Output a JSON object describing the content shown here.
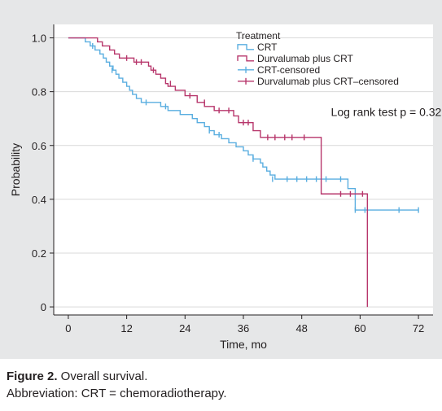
{
  "chart_data": {
    "type": "line",
    "subtype": "kaplan-meier step",
    "title": "",
    "xlabel": "Time, mo",
    "ylabel": "Probability",
    "xlim": [
      -3,
      75
    ],
    "ylim": [
      -0.03,
      1.05
    ],
    "x_ticks": [
      0,
      12,
      24,
      36,
      48,
      60,
      72
    ],
    "y_ticks": [
      0,
      0.2,
      0.4,
      0.6,
      0.8,
      1.0
    ],
    "y_tick_labels": [
      "0",
      "0.2",
      "0.4",
      "0.6",
      "0.8",
      "1.0"
    ],
    "grid": "horizontal",
    "legend": {
      "title": "Treatment",
      "placement": "top-right",
      "entries": [
        "CRT",
        "Durvalumab plus CRT",
        "CRT-censored",
        "Durvalumab plus CRT–censored"
      ]
    },
    "annotations": [
      {
        "text": "Log rank test p = 0.32",
        "x": 54,
        "y": 0.71
      }
    ],
    "series": [
      {
        "name": "CRT",
        "color": "#5aaee0",
        "steps": [
          [
            0,
            1.0
          ],
          [
            3.5,
            0.985
          ],
          [
            4.5,
            0.97
          ],
          [
            5.5,
            0.955
          ],
          [
            6.5,
            0.94
          ],
          [
            7.2,
            0.925
          ],
          [
            7.8,
            0.91
          ],
          [
            8.5,
            0.895
          ],
          [
            9.2,
            0.88
          ],
          [
            9.8,
            0.865
          ],
          [
            10.4,
            0.85
          ],
          [
            11.2,
            0.835
          ],
          [
            12.0,
            0.82
          ],
          [
            12.6,
            0.805
          ],
          [
            13.2,
            0.79
          ],
          [
            14.0,
            0.775
          ],
          [
            15.0,
            0.76
          ],
          [
            19.0,
            0.745
          ],
          [
            20.5,
            0.73
          ],
          [
            23.0,
            0.715
          ],
          [
            25.5,
            0.7
          ],
          [
            26.5,
            0.685
          ],
          [
            28.0,
            0.67
          ],
          [
            29.0,
            0.655
          ],
          [
            30.0,
            0.64
          ],
          [
            31.5,
            0.625
          ],
          [
            33.0,
            0.61
          ],
          [
            34.5,
            0.595
          ],
          [
            36.0,
            0.58
          ],
          [
            37.0,
            0.565
          ],
          [
            38.0,
            0.55
          ],
          [
            39.5,
            0.535
          ],
          [
            40.0,
            0.52
          ],
          [
            40.8,
            0.505
          ],
          [
            41.5,
            0.49
          ],
          [
            42.5,
            0.475
          ],
          [
            57.5,
            0.44
          ],
          [
            59.0,
            0.36
          ]
        ],
        "end_x": 72
      },
      {
        "name": "Durvalumab plus CRT",
        "color": "#b7366b",
        "steps": [
          [
            0,
            1.0
          ],
          [
            6.0,
            0.985
          ],
          [
            7.0,
            0.97
          ],
          [
            8.5,
            0.955
          ],
          [
            9.5,
            0.94
          ],
          [
            10.5,
            0.925
          ],
          [
            13.5,
            0.91
          ],
          [
            16.5,
            0.895
          ],
          [
            17.0,
            0.88
          ],
          [
            18.0,
            0.865
          ],
          [
            19.0,
            0.85
          ],
          [
            20.0,
            0.83
          ],
          [
            20.5,
            0.82
          ],
          [
            22.0,
            0.805
          ],
          [
            24.0,
            0.785
          ],
          [
            26.5,
            0.76
          ],
          [
            28.0,
            0.745
          ],
          [
            30.0,
            0.73
          ],
          [
            34.0,
            0.71
          ],
          [
            35.0,
            0.685
          ],
          [
            38.0,
            0.655
          ],
          [
            39.5,
            0.63
          ],
          [
            52.0,
            0.42
          ],
          [
            59.5,
            0.42
          ],
          [
            61.5,
            0.0
          ]
        ],
        "end_x": 61.5
      },
      {
        "name": "CRT-censored",
        "color": "#5aaee0",
        "x": [
          5,
          9,
          16,
          20,
          29,
          31,
          38,
          42,
          45,
          47,
          49,
          51,
          53,
          56,
          59,
          61,
          68,
          72
        ],
        "y": [
          0.97,
          0.88,
          0.76,
          0.745,
          0.655,
          0.64,
          0.55,
          0.475,
          0.475,
          0.475,
          0.475,
          0.475,
          0.475,
          0.475,
          0.36,
          0.36,
          0.36,
          0.36
        ]
      },
      {
        "name": "Durvalumab plus CRT–censored",
        "color": "#b7366b",
        "x": [
          12,
          14,
          15,
          17.5,
          21,
          25,
          28,
          31,
          33,
          36,
          37,
          41,
          42.5,
          44.5,
          46,
          48.5,
          56,
          58,
          60.5
        ],
        "y": [
          0.925,
          0.91,
          0.91,
          0.88,
          0.83,
          0.785,
          0.76,
          0.73,
          0.73,
          0.685,
          0.685,
          0.63,
          0.63,
          0.63,
          0.63,
          0.63,
          0.42,
          0.42,
          0.42
        ]
      }
    ]
  },
  "caption": {
    "label": "Figure 2.",
    "text": " Overall survival.",
    "abbreviation": "Abbreviation: CRT = chemoradiotherapy."
  }
}
